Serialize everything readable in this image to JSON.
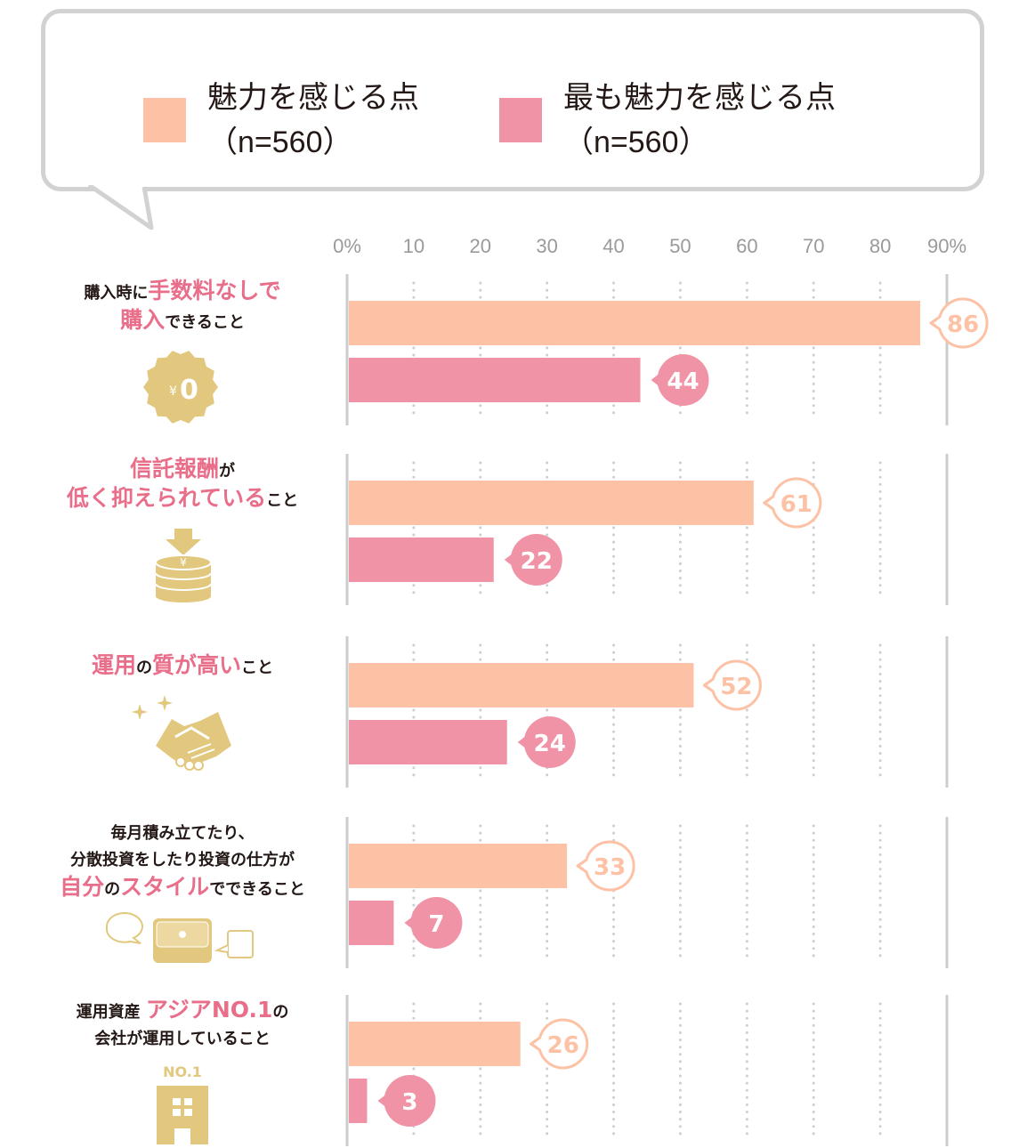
{
  "colors": {
    "attractive": "#fdc2a6",
    "most_attractive": "#f093a6",
    "accent": "#e96e8a",
    "icon_gold": "#e2c87e",
    "grid": "#cfcfcf",
    "tick_text": "#9a9a9a"
  },
  "legend": [
    {
      "label": "魅力を感じる点",
      "n": "（n=560）"
    },
    {
      "label": "最も魅力を感じる点",
      "n": "（n=560）"
    }
  ],
  "chart_data": {
    "type": "bar",
    "orientation": "horizontal",
    "title": "",
    "xlabel": "",
    "ylabel": "",
    "xlim": [
      0,
      90
    ],
    "ticks": [
      "0%",
      "10",
      "20",
      "30",
      "40",
      "50",
      "60",
      "70",
      "80",
      "90%"
    ],
    "grid": true,
    "legend_position": "top",
    "categories": [
      "購入時に手数料なしで購入できること",
      "信託報酬が低く抑えられていること",
      "運用の質が高いこと",
      "毎月積み立てたり、分散投資をしたり投資の仕方が自分のスタイルでできること",
      "運用資産アジアNO.1の会社が運用していること"
    ],
    "series": [
      {
        "name": "魅力を感じる点（n=560）",
        "values": [
          86,
          61,
          52,
          33,
          26
        ]
      },
      {
        "name": "最も魅力を感じる点（n=560）",
        "values": [
          44,
          22,
          24,
          7,
          3
        ]
      }
    ]
  },
  "groups": [
    {
      "lines": [
        [
          {
            "t": "購入時に",
            "hl": false
          },
          {
            "t": "手数料なしで",
            "hl": true
          }
        ],
        [
          {
            "t": "購入",
            "hl": true
          },
          {
            "t": "できること",
            "hl": false
          }
        ]
      ],
      "icon": "yen-zero-badge-icon",
      "icon_text": "¥0"
    },
    {
      "lines": [
        [
          {
            "t": "信託報酬",
            "hl": true
          },
          {
            "t": "が",
            "hl": false
          }
        ],
        [
          {
            "t": "低く抑えられている",
            "hl": true
          },
          {
            "t": "こと",
            "hl": false
          }
        ]
      ],
      "icon": "coin-stack-down-arrow-icon",
      "icon_text": "¥"
    },
    {
      "lines": [
        [
          {
            "t": "運用",
            "hl": true
          },
          {
            "t": "の",
            "hl": false
          },
          {
            "t": "質が高い",
            "hl": true
          },
          {
            "t": "こと",
            "hl": false
          }
        ]
      ],
      "icon": "handshake-sparkle-icon",
      "icon_text": ""
    },
    {
      "lines": [
        [
          {
            "t": "毎月積み立てたり、",
            "hl": false
          }
        ],
        [
          {
            "t": "分散投資をしたり投資の仕方が",
            "hl": false
          }
        ],
        [
          {
            "t": "自分",
            "hl": true
          },
          {
            "t": "の",
            "hl": false
          },
          {
            "t": "スタイル",
            "hl": true
          },
          {
            "t": "でできること",
            "hl": false
          }
        ]
      ],
      "icon": "wallet-speech-bubbles-icon",
      "icon_text": ""
    },
    {
      "lines": [
        [
          {
            "t": "運用資産 ",
            "hl": false
          },
          {
            "t": "アジアNO.1",
            "hl": true
          },
          {
            "t": "の",
            "hl": false
          }
        ],
        [
          {
            "t": "会社が運用していること",
            "hl": false
          }
        ]
      ],
      "icon": "building-no1-icon",
      "icon_text": "NO.1"
    }
  ]
}
